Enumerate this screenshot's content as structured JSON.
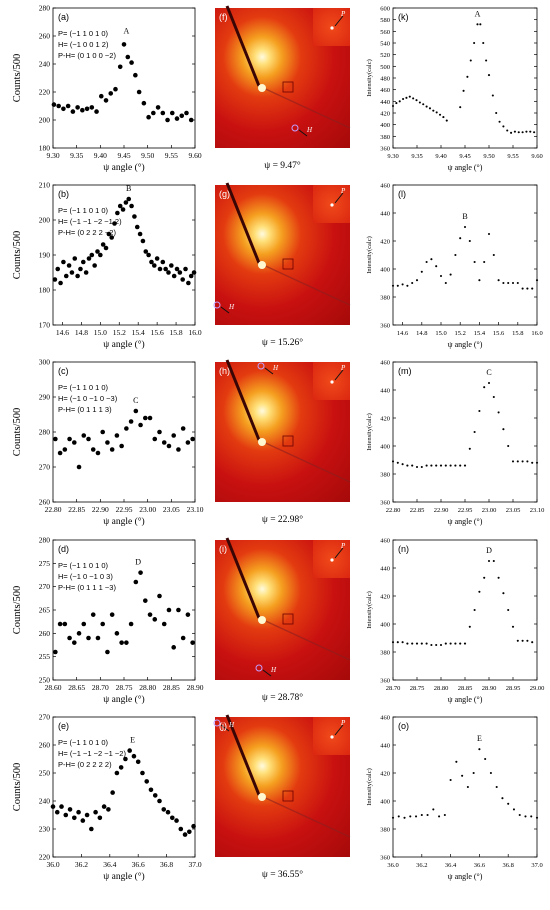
{
  "chart_data": [
    {
      "panel": "(a)",
      "type": "scatter",
      "annotation_lines": [
        "P= (−1 1 0 1 0)",
        "H= (−1 0 0 1 2)",
        "P-H= (0 1 0 0 −2)"
      ],
      "peak_label": "A",
      "xlabel": "ψ angle (°)",
      "ylabel": "Counts/500",
      "xlim": [
        9.3,
        9.6
      ],
      "ylim": [
        180,
        280
      ],
      "xticks": [
        "9.30",
        "9.35",
        "9.40",
        "9.45",
        "9.50",
        "9.55",
        "9.60"
      ],
      "yticks": [
        "180",
        "200",
        "220",
        "240",
        "260",
        "280"
      ],
      "peak": [
        9.455,
        256
      ],
      "x": [
        9.302,
        9.312,
        9.322,
        9.332,
        9.342,
        9.352,
        9.362,
        9.372,
        9.382,
        9.392,
        9.402,
        9.412,
        9.422,
        9.432,
        9.442,
        9.45,
        9.458,
        9.466,
        9.474,
        9.482,
        9.492,
        9.502,
        9.512,
        9.522,
        9.532,
        9.542,
        9.552,
        9.562,
        9.572,
        9.582,
        9.592
      ],
      "y": [
        211,
        210,
        208,
        210,
        206,
        209,
        207,
        208,
        209,
        206,
        217,
        214,
        219,
        222,
        238,
        254,
        245,
        241,
        232,
        220,
        212,
        202,
        205,
        209,
        205,
        200,
        205,
        201,
        203,
        205,
        200
      ]
    },
    {
      "panel": "(f)",
      "type": "image",
      "caption": "ψ =   9.47°",
      "markers": [
        "P",
        "H"
      ]
    },
    {
      "panel": "(k)",
      "type": "scatter",
      "peak_label": "A",
      "xlabel": "ψ angle (°)",
      "ylabel": "Intensity(calc)",
      "xlim": [
        9.3,
        9.6
      ],
      "ylim": [
        360,
        600
      ],
      "xticks": [
        "9.30",
        "9.35",
        "9.40",
        "9.45",
        "9.50",
        "9.55",
        "9.60"
      ],
      "yticks": [
        "360",
        "380",
        "400",
        "420",
        "440",
        "460",
        "480",
        "500",
        "520",
        "540",
        "560",
        "580",
        "600"
      ],
      "x": [
        9.3,
        9.307,
        9.314,
        9.321,
        9.328,
        9.335,
        9.342,
        9.349,
        9.356,
        9.363,
        9.37,
        9.377,
        9.384,
        9.391,
        9.398,
        9.405,
        9.412,
        9.44,
        9.447,
        9.455,
        9.462,
        9.469,
        9.476,
        9.482,
        9.488,
        9.494,
        9.5,
        9.508,
        9.515,
        9.522,
        9.53,
        9.538,
        9.546,
        9.554,
        9.562,
        9.57,
        9.578,
        9.586,
        9.594
      ],
      "y": [
        432,
        437,
        440,
        444,
        446,
        448,
        445,
        442,
        438,
        435,
        431,
        428,
        424,
        421,
        417,
        413,
        407,
        430,
        458,
        482,
        510,
        540,
        572,
        572,
        540,
        510,
        485,
        450,
        420,
        405,
        397,
        390,
        386,
        388,
        387,
        387,
        388,
        388,
        387
      ]
    },
    {
      "panel": "(b)",
      "type": "scatter",
      "annotation_lines": [
        "P= (−1 1 0 1 0)",
        "H= (−1 −1 −2 −1 2)",
        "P-H= (0 2 2 2 −2)"
      ],
      "peak_label": "B",
      "xlabel": "ψ angle (°)",
      "ylabel": "Counts/500",
      "xlim": [
        14.5,
        16.0
      ],
      "ylim": [
        170,
        210
      ],
      "xticks": [
        "14.6",
        "14.8",
        "15.0",
        "15.2",
        "15.4",
        "15.6",
        "15.8",
        "16.0"
      ],
      "yticks": [
        "170",
        "180",
        "190",
        "200",
        "210"
      ],
      "peak": [
        15.3,
        206
      ],
      "x": [
        14.52,
        14.55,
        14.58,
        14.61,
        14.64,
        14.67,
        14.7,
        14.73,
        14.76,
        14.79,
        14.82,
        14.85,
        14.88,
        14.91,
        14.94,
        14.97,
        15.0,
        15.03,
        15.06,
        15.09,
        15.12,
        15.15,
        15.18,
        15.21,
        15.24,
        15.27,
        15.3,
        15.33,
        15.36,
        15.39,
        15.42,
        15.45,
        15.48,
        15.51,
        15.54,
        15.57,
        15.6,
        15.63,
        15.66,
        15.69,
        15.72,
        15.75,
        15.78,
        15.81,
        15.84,
        15.87,
        15.9,
        15.93,
        15.96,
        15.99
      ],
      "y": [
        183,
        186,
        182,
        188,
        184,
        187,
        185,
        189,
        184,
        186,
        188,
        185,
        189,
        190,
        187,
        191,
        190,
        193,
        192,
        196,
        195,
        199,
        202,
        204,
        203,
        205,
        206,
        204,
        201,
        198,
        196,
        194,
        191,
        190,
        188,
        187,
        189,
        186,
        188,
        186,
        185,
        187,
        184,
        186,
        185,
        183,
        186,
        182,
        184,
        185
      ]
    },
    {
      "panel": "(g)",
      "type": "image",
      "caption": "ψ = 15.26°",
      "markers": [
        "P",
        "H"
      ]
    },
    {
      "panel": "(l)",
      "type": "scatter",
      "peak_label": "B",
      "xlabel": "ψ angle (°)",
      "ylabel": "Intensity(calc)",
      "xlim": [
        14.5,
        16.0
      ],
      "ylim": [
        360,
        460
      ],
      "xticks": [
        "14.6",
        "14.8",
        "15.0",
        "15.2",
        "15.4",
        "15.6",
        "15.8",
        "16.0"
      ],
      "yticks": [
        "360",
        "380",
        "400",
        "420",
        "440",
        "460"
      ],
      "x": [
        14.5,
        14.55,
        14.6,
        14.65,
        14.7,
        14.75,
        14.8,
        14.85,
        14.9,
        14.95,
        15.0,
        15.05,
        15.1,
        15.15,
        15.2,
        15.25,
        15.3,
        15.35,
        15.4,
        15.45,
        15.5,
        15.55,
        15.6,
        15.65,
        15.7,
        15.75,
        15.8,
        15.85,
        15.9,
        15.95,
        16.0
      ],
      "y": [
        388,
        388,
        389,
        388,
        390,
        392,
        398,
        405,
        407,
        402,
        395,
        390,
        396,
        410,
        422,
        430,
        420,
        405,
        392,
        405,
        425,
        410,
        392,
        390,
        390,
        390,
        390,
        386,
        386,
        386,
        392
      ]
    },
    {
      "panel": "(c)",
      "type": "scatter",
      "annotation_lines": [
        "P= (−1 1 0 1 0)",
        "H= (−1 0 −1 0 −3)",
        "P-H= (0 1 1 1 3)"
      ],
      "peak_label": "C",
      "xlabel": "ψ angle (°)",
      "ylabel": "Counts/500",
      "xlim": [
        22.8,
        23.1
      ],
      "ylim": [
        260,
        300
      ],
      "xticks": [
        "22.80",
        "22.85",
        "22.90",
        "22.95",
        "23.00",
        "23.05",
        "23.10"
      ],
      "yticks": [
        "260",
        "270",
        "280",
        "290",
        "300"
      ],
      "peak": [
        22.975,
        286
      ],
      "x": [
        22.805,
        22.815,
        22.825,
        22.835,
        22.845,
        22.855,
        22.865,
        22.875,
        22.885,
        22.895,
        22.905,
        22.915,
        22.925,
        22.935,
        22.945,
        22.955,
        22.965,
        22.975,
        22.985,
        22.995,
        23.005,
        23.015,
        23.025,
        23.035,
        23.045,
        23.055,
        23.065,
        23.075,
        23.085,
        23.095
      ],
      "y": [
        278,
        274,
        275,
        278,
        277,
        270,
        279,
        278,
        275,
        274,
        280,
        277,
        275,
        279,
        276,
        281,
        283,
        286,
        282,
        284,
        284,
        278,
        280,
        277,
        276,
        279,
        275,
        281,
        277,
        278
      ]
    },
    {
      "panel": "(h)",
      "type": "image",
      "caption": "ψ = 22.98°",
      "markers": [
        "H",
        "P"
      ]
    },
    {
      "panel": "(m)",
      "type": "scatter",
      "peak_label": "C",
      "xlabel": "ψ angle (°)",
      "ylabel": "Intensity(calc)",
      "xlim": [
        22.8,
        23.1
      ],
      "ylim": [
        360,
        460
      ],
      "xticks": [
        "22.80",
        "22.85",
        "22.90",
        "22.95",
        "23.00",
        "23.05",
        "23.10"
      ],
      "yticks": [
        "360",
        "380",
        "400",
        "420",
        "440",
        "460"
      ],
      "x": [
        22.8,
        22.81,
        22.82,
        22.83,
        22.84,
        22.85,
        22.86,
        22.87,
        22.88,
        22.89,
        22.9,
        22.91,
        22.92,
        22.93,
        22.94,
        22.95,
        22.96,
        22.97,
        22.98,
        22.99,
        23.0,
        23.01,
        23.02,
        23.03,
        23.04,
        23.05,
        23.06,
        23.07,
        23.08,
        23.09,
        23.1
      ],
      "y": [
        389,
        388,
        387,
        386,
        386,
        385,
        385,
        386,
        386,
        386,
        386,
        386,
        386,
        386,
        386,
        386,
        398,
        410,
        425,
        442,
        445,
        435,
        424,
        412,
        400,
        389,
        389,
        389,
        389,
        388,
        388
      ]
    },
    {
      "panel": "(d)",
      "type": "scatter",
      "annotation_lines": [
        "P= (−1 1 0 1 0)",
        "H= (−1 0 −1 0 3)",
        "P-H= (0 1 1 1 −3)"
      ],
      "peak_label": "D",
      "xlabel": "ψ angle (°)",
      "ylabel": "Counts/500",
      "xlim": [
        28.6,
        28.9
      ],
      "ylim": [
        250,
        280
      ],
      "xticks": [
        "28.60",
        "28.65",
        "28.70",
        "28.75",
        "28.80",
        "28.85",
        "28.90"
      ],
      "yticks": [
        "250",
        "255",
        "260",
        "265",
        "270",
        "275",
        "280"
      ],
      "peak": [
        28.78,
        273
      ],
      "x": [
        28.605,
        28.615,
        28.625,
        28.635,
        28.645,
        28.655,
        28.665,
        28.675,
        28.685,
        28.695,
        28.705,
        28.715,
        28.725,
        28.735,
        28.745,
        28.755,
        28.765,
        28.775,
        28.785,
        28.795,
        28.805,
        28.815,
        28.825,
        28.835,
        28.845,
        28.855,
        28.865,
        28.875,
        28.885,
        28.895
      ],
      "y": [
        256,
        262,
        262,
        259,
        258,
        260,
        262,
        259,
        264,
        259,
        262,
        256,
        264,
        260,
        258,
        258,
        262,
        271,
        273,
        267,
        264,
        263,
        268,
        262,
        265,
        257,
        265,
        259,
        264,
        258
      ]
    },
    {
      "panel": "(i)",
      "type": "image",
      "caption": "ψ = 28.78°",
      "markers": [
        "P",
        "H"
      ]
    },
    {
      "panel": "(n)",
      "type": "scatter",
      "peak_label": "D",
      "xlabel": "ψ angle (°)",
      "ylabel": "Intensity(calc)",
      "xlim": [
        28.7,
        29.0
      ],
      "ylim": [
        360,
        460
      ],
      "xticks": [
        "28.70",
        "28.75",
        "28.80",
        "28.85",
        "28.90",
        "28.95",
        "29.00"
      ],
      "yticks": [
        "360",
        "380",
        "400",
        "420",
        "440",
        "460"
      ],
      "x": [
        28.7,
        28.71,
        28.72,
        28.73,
        28.74,
        28.75,
        28.76,
        28.77,
        28.78,
        28.79,
        28.8,
        28.81,
        28.82,
        28.83,
        28.84,
        28.85,
        28.86,
        28.87,
        28.88,
        28.89,
        28.9,
        28.91,
        28.92,
        28.93,
        28.94,
        28.95,
        28.96,
        28.97,
        28.98,
        28.99
      ],
      "y": [
        387,
        387,
        387,
        386,
        386,
        386,
        386,
        386,
        385,
        385,
        385,
        386,
        386,
        386,
        386,
        386,
        398,
        410,
        423,
        433,
        445,
        445,
        433,
        422,
        410,
        398,
        388,
        388,
        388,
        387
      ]
    },
    {
      "panel": "(e)",
      "type": "scatter",
      "annotation_lines": [
        "P= (−1 1 0 1 0)",
        "H= (−1 −1 −2 −1 −2)",
        "P-H= (0 2 2 2 2)"
      ],
      "peak_label": "E",
      "xlabel": "ψ angle (°)",
      "ylabel": "Counts/500",
      "xlim": [
        36.0,
        37.0
      ],
      "ylim": [
        220,
        270
      ],
      "xticks": [
        "36.0",
        "36.2",
        "36.4",
        "36.6",
        "36.8",
        "37.0"
      ],
      "yticks": [
        "220",
        "230",
        "240",
        "250",
        "260",
        "270"
      ],
      "peak": [
        36.56,
        258
      ],
      "x": [
        36.0,
        36.03,
        36.06,
        36.09,
        36.12,
        36.15,
        36.18,
        36.21,
        36.24,
        36.27,
        36.3,
        36.33,
        36.36,
        36.39,
        36.42,
        36.45,
        36.48,
        36.51,
        36.54,
        36.57,
        36.6,
        36.63,
        36.66,
        36.69,
        36.72,
        36.75,
        36.78,
        36.81,
        36.84,
        36.87,
        36.9,
        36.93,
        36.96,
        36.99
      ],
      "y": [
        238,
        236,
        238,
        235,
        237,
        234,
        236,
        233,
        235,
        230,
        236,
        234,
        238,
        237,
        243,
        250,
        252,
        255,
        258,
        256,
        254,
        250,
        247,
        244,
        242,
        240,
        237,
        236,
        234,
        233,
        230,
        228,
        229,
        231
      ]
    },
    {
      "panel": "(j)",
      "type": "image",
      "caption": "ψ = 36.55°",
      "markers": [
        "H",
        "P"
      ]
    },
    {
      "panel": "(o)",
      "type": "scatter",
      "peak_label": "E",
      "xlabel": "ψ angle (°)",
      "ylabel": "Intensity(calc)",
      "xlim": [
        36.0,
        37.0
      ],
      "ylim": [
        360,
        460
      ],
      "xticks": [
        "36.0",
        "36.2",
        "36.4",
        "36.6",
        "36.8",
        "37.0"
      ],
      "yticks": [
        "360",
        "380",
        "400",
        "420",
        "440",
        "460"
      ],
      "x": [
        36.0,
        36.04,
        36.08,
        36.12,
        36.16,
        36.2,
        36.24,
        36.28,
        36.32,
        36.36,
        36.4,
        36.44,
        36.48,
        36.52,
        36.56,
        36.6,
        36.64,
        36.68,
        36.72,
        36.76,
        36.8,
        36.84,
        36.88,
        36.92,
        36.96,
        37.0
      ],
      "y": [
        388,
        389,
        388,
        389,
        389,
        390,
        390,
        394,
        389,
        390,
        415,
        428,
        418,
        410,
        420,
        437,
        430,
        420,
        410,
        402,
        398,
        394,
        390,
        389,
        389,
        388
      ]
    }
  ]
}
